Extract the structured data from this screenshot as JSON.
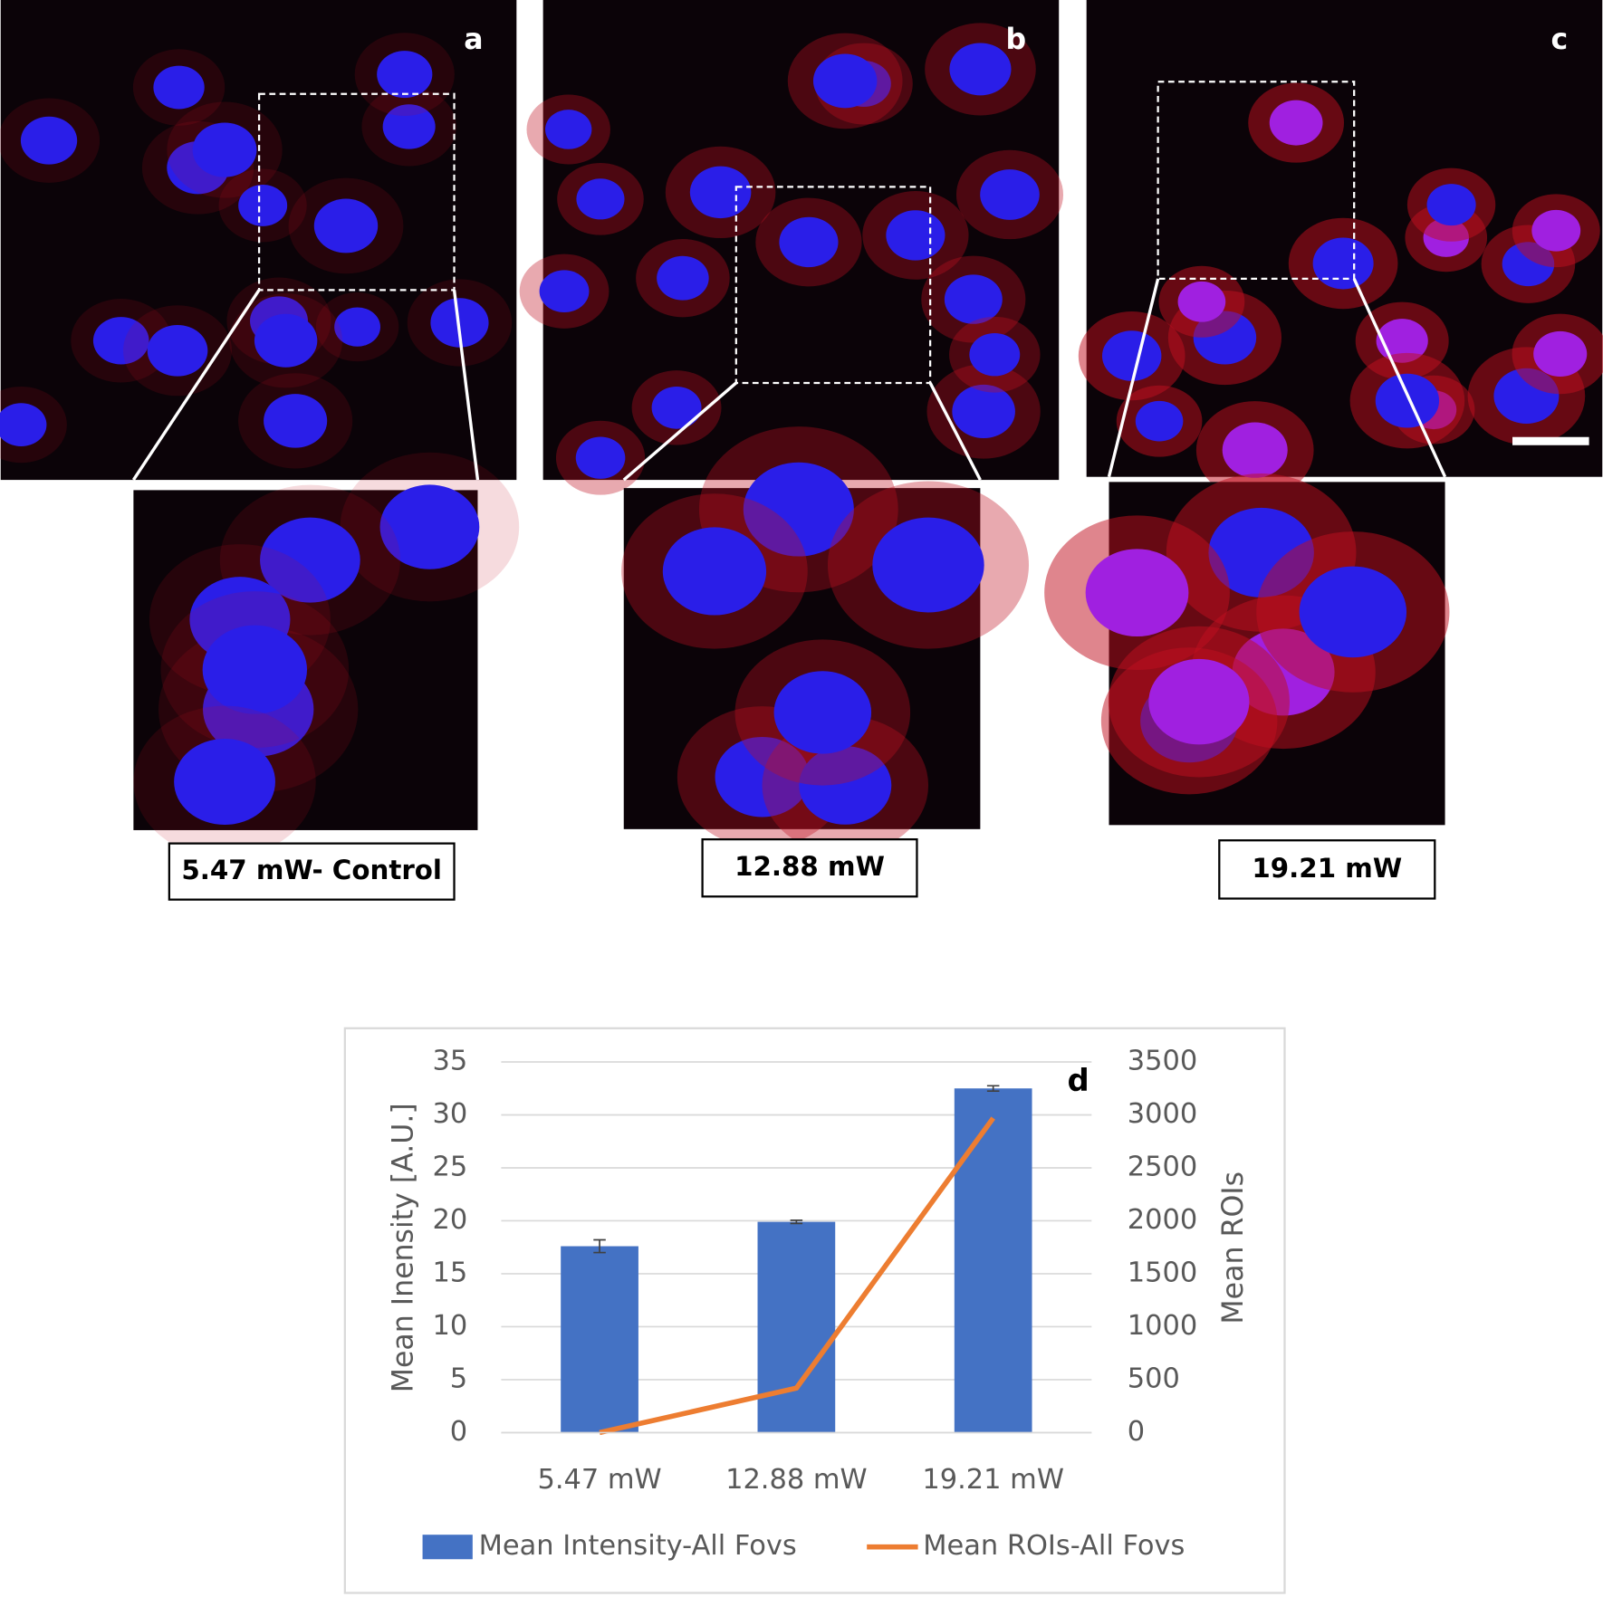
{
  "panels": [
    {
      "label": "a",
      "caption": "5.47 mW- Control"
    },
    {
      "label": "b",
      "caption": "12.88 mW"
    },
    {
      "label": "c",
      "caption": "19.21 mW"
    }
  ],
  "chart_data": {
    "type": "bar",
    "annotation": "d",
    "categories": [
      "5.47 mW",
      "12.88 mW",
      "19.21 mW"
    ],
    "series": [
      {
        "name": "Mean Intensity-All Fovs",
        "type": "bar",
        "color": "#4472c4",
        "values": [
          17.6,
          19.9,
          32.5
        ],
        "errors": [
          0.6,
          0.15,
          0.25
        ]
      },
      {
        "name": "Mean ROIs-All Fovs",
        "type": "line",
        "axis": "y2",
        "color": "#ed7d31",
        "values": [
          0,
          420,
          2970
        ]
      }
    ],
    "ylabel": "Mean Inensity [A.U.]",
    "y2label": "Mean ROIs",
    "ylim": [
      0,
      35
    ],
    "yticks": [
      0,
      5,
      10,
      15,
      20,
      25,
      30,
      35
    ],
    "y2lim": [
      0,
      3500
    ],
    "y2ticks": [
      0,
      500,
      1000,
      1500,
      2000,
      2500,
      3000,
      3500
    ],
    "grid": true,
    "legend": "bottom"
  }
}
